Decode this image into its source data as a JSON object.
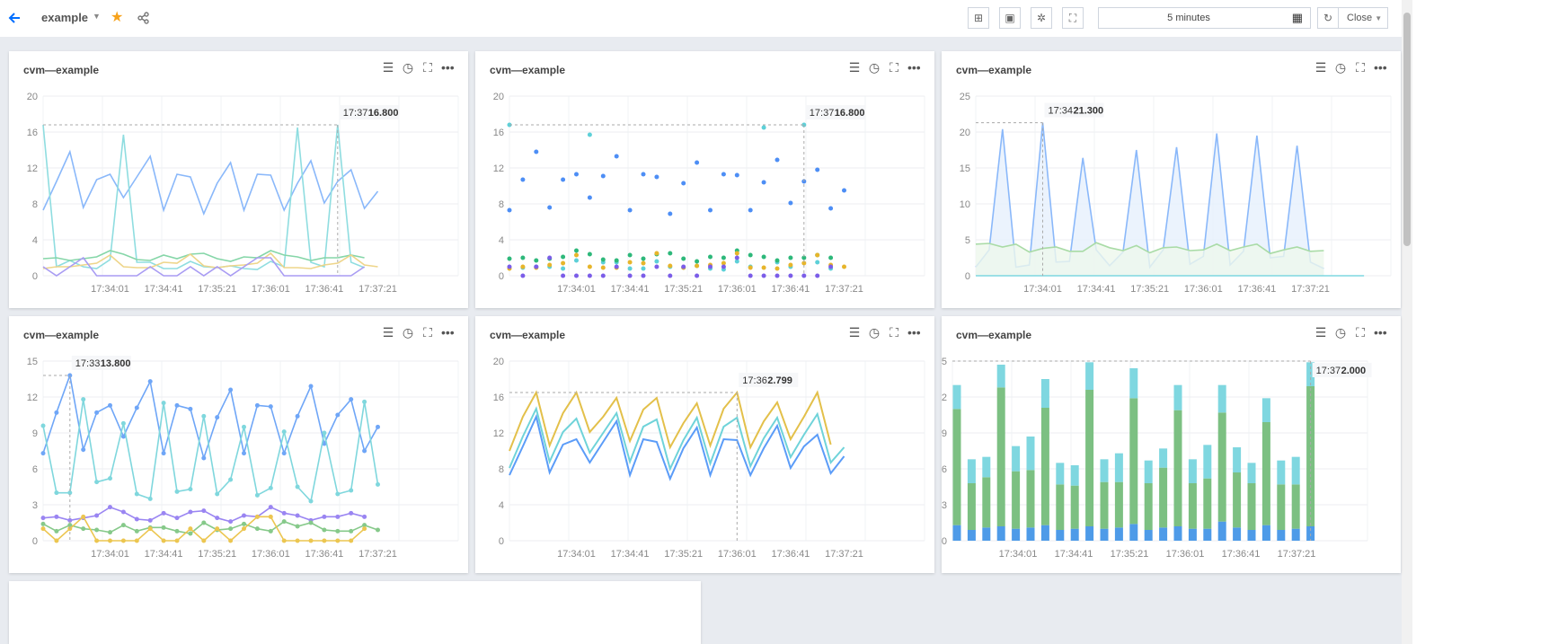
{
  "header": {
    "title": "example",
    "time_range": "5 minutes",
    "refresh_mode": "Close",
    "icons": [
      "back-arrow-icon",
      "caret-down-icon",
      "star-icon",
      "share-icon",
      "add-panel-icon",
      "save-icon",
      "settings-icon",
      "fullscreen-icon",
      "calendar-icon",
      "refresh-icon"
    ],
    "accent": "#006eff",
    "star_color": "#f7a21b"
  },
  "panels": [
    {
      "title": "cvm—example",
      "tooltip": {
        "time": "17:37",
        "value": "16.800",
        "index": 22,
        "y": 16.8
      }
    },
    {
      "title": "cvm—example",
      "tooltip": {
        "time": "17:37",
        "value": "16.800",
        "index": 22,
        "y": 16.8
      }
    },
    {
      "title": "cvm—example",
      "tooltip": {
        "time": "17:34",
        "value": "21.300",
        "index": 5,
        "y": 21.3
      }
    },
    {
      "title": "cvm—example",
      "tooltip": {
        "time": "17:33",
        "value": "13.800",
        "index": 2,
        "y": 13.8
      }
    },
    {
      "title": "cvm—example",
      "tooltip": {
        "time": "17:36",
        "value": "2.799",
        "index": 17,
        "y": 16.5
      }
    },
    {
      "title": "cvm—example",
      "tooltip": {
        "time": "17:37",
        "value": "2.000",
        "index": 24,
        "y": 15
      }
    }
  ],
  "chart_data": [
    {
      "type": "line",
      "ylim": [
        0,
        20
      ],
      "yticks": [
        0,
        4,
        8,
        12,
        16,
        20
      ],
      "x_ticks": [
        "17:34:01",
        "17:34:41",
        "17:35:21",
        "17:36:01",
        "17:36:41",
        "17:37:21"
      ],
      "series": [
        {
          "color": "#8ab8fa",
          "values": [
            7.3,
            10.5,
            13.8,
            7.6,
            10.7,
            11.3,
            8.7,
            11,
            13.3,
            7.3,
            11.3,
            11,
            6.9,
            10.3,
            12.6,
            7.3,
            11.3,
            11.2,
            7.3,
            10.3,
            12.8,
            8.1,
            10.5,
            11.8,
            7.5,
            9.4
          ]
        },
        {
          "color": "#8fdde0",
          "values": [
            16.8,
            1,
            1.7,
            1,
            0.8,
            1.8,
            15.7,
            1.5,
            1.5,
            0.8,
            0.8,
            1.6,
            1,
            0.9,
            1.1,
            0.8,
            0.7,
            1.6,
            1,
            16.5,
            1.5,
            1,
            16.8,
            1.5,
            0.9
          ]
        },
        {
          "color": "#85d6a8",
          "values": [
            1.9,
            2,
            1.7,
            1.9,
            2.1,
            2.8,
            2.4,
            1.8,
            1.7,
            2.3,
            1.9,
            2.4,
            2.5,
            1.9,
            1.6,
            2.1,
            2,
            2.8,
            2.3,
            2.1,
            1.7,
            2,
            2,
            2.3,
            2
          ]
        },
        {
          "color": "#eed58a",
          "values": [
            0.8,
            1,
            1,
            1.2,
            1.4,
            2.3,
            1,
            0.9,
            0.9,
            1.5,
            1.4,
            2.4,
            1.1,
            0.9,
            1.1,
            1.2,
            1.4,
            2.5,
            0.9,
            0.9,
            0.8,
            1.2,
            1.4,
            2.3,
            1.2,
            1
          ]
        },
        {
          "color": "#a99cf3",
          "values": [
            1,
            0,
            1,
            2,
            0,
            0,
            0,
            0,
            1,
            0,
            0,
            1,
            0,
            1,
            0,
            1,
            2,
            2,
            0,
            0,
            0,
            0,
            0,
            0,
            1
          ]
        }
      ]
    },
    {
      "type": "scatter",
      "ylim": [
        0,
        20
      ],
      "yticks": [
        0,
        4,
        8,
        12,
        16,
        20
      ],
      "x_ticks": [
        "17:34:01",
        "17:34:41",
        "17:35:21",
        "17:36:01",
        "17:36:41",
        "17:37:21"
      ],
      "series": [
        {
          "color": "#4d8ef5",
          "values": [
            7.3,
            10.7,
            13.8,
            7.6,
            10.7,
            11.3,
            8.7,
            11.1,
            13.3,
            7.3,
            11.3,
            11,
            6.9,
            10.3,
            12.6,
            7.3,
            11.3,
            11.2,
            7.3,
            10.4,
            12.9,
            8.1,
            10.5,
            11.8,
            7.5,
            9.5
          ]
        },
        {
          "color": "#5dd0d8",
          "values": [
            16.8,
            0.9,
            1,
            1,
            0.8,
            1.7,
            15.7,
            1.5,
            1.5,
            0.8,
            0.8,
            1.6,
            1,
            0.9,
            1.1,
            0.8,
            0.7,
            1.6,
            1,
            16.5,
            1.5,
            1,
            16.8,
            1.5,
            0.8
          ]
        },
        {
          "color": "#2db87a",
          "values": [
            1.9,
            2,
            1.7,
            1.9,
            2.1,
            2.8,
            2.4,
            1.8,
            1.7,
            2.3,
            1.9,
            2.4,
            2.5,
            1.9,
            1.6,
            2.1,
            2,
            2.8,
            2.3,
            2.1,
            1.7,
            2,
            2,
            2.3,
            2
          ]
        },
        {
          "color": "#e7b52b",
          "values": [
            0.8,
            1,
            0.9,
            1.2,
            1.4,
            2.3,
            1,
            0.9,
            0.9,
            1.5,
            1.4,
            2.5,
            1.1,
            0.9,
            1.1,
            1.2,
            1.4,
            2.5,
            0.9,
            0.9,
            0.8,
            1.2,
            1.4,
            2.3,
            1.2,
            1
          ]
        },
        {
          "color": "#7b5de8",
          "values": [
            1,
            0,
            1,
            2,
            0,
            0,
            0,
            0,
            1,
            0,
            0,
            1,
            0,
            1,
            0,
            1,
            1,
            2,
            0,
            0,
            0,
            0,
            0,
            0,
            1
          ]
        }
      ]
    },
    {
      "type": "area",
      "ylim": [
        0,
        25
      ],
      "yticks": [
        0,
        5,
        10,
        15,
        20,
        25
      ],
      "x_ticks": [
        "17:34:01",
        "17:34:41",
        "17:35:21",
        "17:36:01",
        "17:36:41",
        "17:37:21"
      ],
      "series": [
        {
          "color": "#8ab8fa",
          "fill": "#e6f0fd",
          "values": [
            1.2,
            3.6,
            20.4,
            1.2,
            1.5,
            21.3,
            1.9,
            2,
            16.4,
            3.6,
            1.4,
            3.3,
            17.5,
            1.2,
            3.6,
            17.9,
            1.6,
            2.7,
            19.8,
            1.5,
            3.4,
            19.5,
            2.5,
            2.7,
            18.1,
            1.9,
            1
          ]
        },
        {
          "color": "#a9dba6",
          "fill": "#eef7ec",
          "values": [
            4.4,
            4.5,
            4,
            4.4,
            3.3,
            3.8,
            4,
            3.4,
            3.4,
            4.6,
            3.9,
            3.5,
            4.2,
            3.2,
            3.9,
            4,
            3.5,
            3.6,
            4.4,
            3.5,
            4,
            4.4,
            3.1,
            3.6,
            4,
            3.4,
            3.5
          ]
        },
        {
          "color": "#7fd7e0",
          "values": [
            0,
            0,
            0,
            0,
            0,
            0,
            0,
            0,
            0,
            0,
            0,
            0,
            0,
            0,
            0,
            0,
            0,
            0,
            0,
            0,
            0,
            0,
            0,
            0,
            0,
            0,
            0,
            0,
            0,
            0
          ]
        }
      ]
    },
    {
      "type": "line-markers",
      "ylim": [
        0,
        15
      ],
      "yticks": [
        0,
        3,
        6,
        9,
        12,
        15
      ],
      "x_ticks": [
        "17:34:01",
        "17:34:41",
        "17:35:21",
        "17:36:01",
        "17:36:41",
        "17:37:21"
      ],
      "series": [
        {
          "color": "#6fa6f7",
          "values": [
            7.3,
            10.7,
            13.8,
            7.6,
            10.7,
            11.3,
            8.7,
            11.1,
            13.3,
            7.3,
            11.3,
            11,
            6.9,
            10.3,
            12.6,
            7.3,
            11.3,
            11.2,
            7.3,
            10.4,
            12.9,
            8.1,
            10.5,
            11.8,
            7.5,
            9.5
          ]
        },
        {
          "color": "#7fd7dd",
          "values": [
            9.6,
            4,
            4,
            11.8,
            4.9,
            5.2,
            9.8,
            3.9,
            3.5,
            11.5,
            4.1,
            4.3,
            10.4,
            3.9,
            5.1,
            9.5,
            3.8,
            4.4,
            9.1,
            4.5,
            3.3,
            9,
            3.9,
            4.2,
            11.6,
            4.7
          ]
        },
        {
          "color": "#9a85f2",
          "values": [
            1.9,
            2,
            1.7,
            1.9,
            2.1,
            2.8,
            2.4,
            1.8,
            1.7,
            2.3,
            1.9,
            2.4,
            2.5,
            1.9,
            1.6,
            2.1,
            2,
            2.8,
            2.3,
            2.1,
            1.7,
            2,
            2,
            2.3,
            2
          ]
        },
        {
          "color": "#86c98a",
          "values": [
            1.4,
            0.8,
            1.3,
            1,
            0.9,
            0.7,
            1.3,
            0.8,
            1.1,
            1.1,
            0.8,
            0.6,
            1.5,
            0.9,
            1,
            1.4,
            1,
            0.8,
            1.6,
            1.2,
            1.5,
            0.9,
            0.8,
            0.8,
            1.3,
            0.9
          ]
        },
        {
          "color": "#ecc650",
          "values": [
            1,
            0,
            1,
            2,
            0,
            0,
            0,
            0,
            1,
            0,
            0,
            1,
            0,
            1,
            0,
            1,
            2,
            2,
            0,
            0,
            0,
            0,
            0,
            0,
            1
          ]
        }
      ]
    },
    {
      "type": "line",
      "ylim": [
        0,
        20
      ],
      "yticks": [
        0,
        4,
        8,
        12,
        16,
        20
      ],
      "x_ticks": [
        "17:34:01",
        "17:34:41",
        "17:35:21",
        "17:36:01",
        "17:36:41",
        "17:37:21"
      ],
      "series": [
        {
          "color": "#e3c04a",
          "values": [
            10,
            13.8,
            16.5,
            10.6,
            14.2,
            16.5,
            12.1,
            13.8,
            15.9,
            11.1,
            14.6,
            15.9,
            10.4,
            13.1,
            15.3,
            10.6,
            14.7,
            16.5,
            10.4,
            13.3,
            15.4,
            11.3,
            13.8,
            16.5,
            10.7
          ]
        },
        {
          "color": "#6fd3d9",
          "values": [
            8.1,
            11.6,
            14.7,
            8.8,
            12.1,
            13.6,
            9.8,
            12,
            14.2,
            8.8,
            12.7,
            13.5,
            8,
            11.2,
            13.7,
            8.6,
            12.7,
            13.7,
            8.3,
            11.4,
            13.7,
            9.3,
            11.8,
            14.1,
            8.7,
            10.4
          ]
        },
        {
          "color": "#5b9cf8",
          "values": [
            7.3,
            10.5,
            13.8,
            7.6,
            10.7,
            11.3,
            8.7,
            11,
            13.3,
            7.3,
            11.3,
            11,
            6.9,
            10.3,
            12.6,
            7.3,
            11.3,
            11.2,
            7.3,
            10.3,
            12.8,
            8.1,
            10.5,
            11.8,
            7.5,
            9.4
          ]
        }
      ]
    },
    {
      "type": "stacked-bar",
      "ylim": [
        0,
        15
      ],
      "yticks": [
        0,
        3,
        6,
        9,
        12,
        15
      ],
      "x_ticks": [
        "17:34:01",
        "17:34:41",
        "17:35:21",
        "17:36:01",
        "17:36:41",
        "17:37:21"
      ],
      "series": [
        {
          "color": "#4e9be8",
          "values": [
            1.3,
            0.9,
            1.1,
            1.2,
            1,
            1.1,
            1.3,
            0.9,
            1,
            1.2,
            1,
            1.1,
            1.4,
            0.9,
            1.1,
            1.2,
            1,
            1,
            1.6,
            1.1,
            0.9,
            1.3,
            0.9,
            1,
            1.2
          ]
        },
        {
          "color": "#7cc082",
          "values": [
            9.7,
            3.9,
            4.2,
            11.6,
            4.8,
            4.8,
            9.8,
            3.8,
            3.6,
            11.4,
            3.9,
            3.8,
            10.5,
            3.9,
            5,
            9.7,
            3.8,
            4.2,
            9.1,
            4.6,
            3.9,
            8.6,
            3.8,
            3.7,
            11.7
          ]
        },
        {
          "color": "#7fd7e0",
          "values": [
            2,
            2,
            1.7,
            1.9,
            2.1,
            2.8,
            2.4,
            1.8,
            1.7,
            2.3,
            1.9,
            2.4,
            2.5,
            1.9,
            1.6,
            2.1,
            2,
            2.8,
            2.3,
            2.1,
            1.7,
            2,
            2,
            2.3,
            2
          ]
        }
      ]
    }
  ]
}
